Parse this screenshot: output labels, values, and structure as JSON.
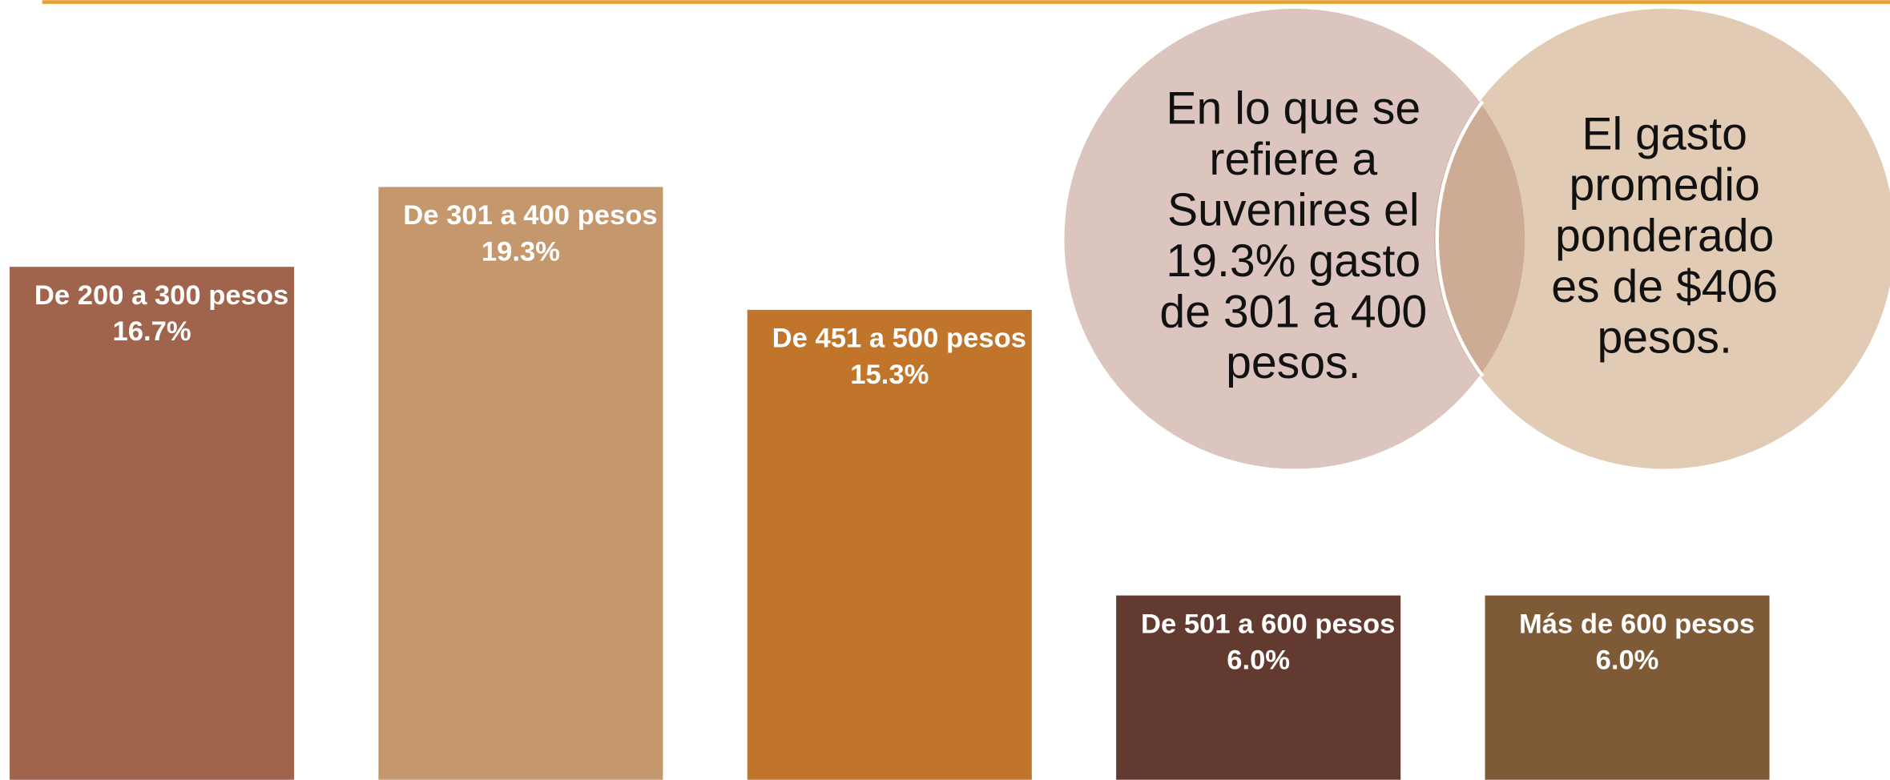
{
  "chart_data": {
    "type": "bar",
    "categories": [
      "De 200 a 300 pesos",
      "De 301 a 400 pesos",
      "De 451 a 500 pesos",
      "De 501 a 600 pesos",
      "Más de 600 pesos"
    ],
    "values": [
      16.7,
      19.3,
      15.3,
      6.0,
      6.0
    ],
    "value_labels": [
      "16.7%",
      "19.3%",
      "15.3%",
      "6.0%",
      "6.0%"
    ],
    "colors": [
      "#a0634b",
      "#c4976c",
      "#c0752a",
      "#633a30",
      "#7f5a37"
    ],
    "annotations": [
      {
        "lines": [
          "En lo que se",
          "refiere a",
          "Suvenires el",
          "19.3% gasto",
          "de 301 a 400",
          "pesos."
        ]
      },
      {
        "lines": [
          "El gasto",
          "promedio",
          "ponderado",
          "es de $406",
          "pesos."
        ]
      }
    ]
  }
}
